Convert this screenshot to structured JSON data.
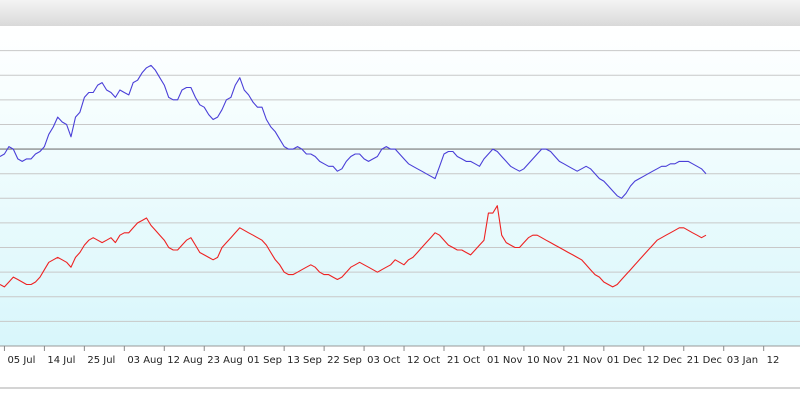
{
  "chart_data": {
    "type": "line",
    "title": "",
    "xlabel": "",
    "ylabel": "",
    "grid": true,
    "legend": "none",
    "x_tick_labels": [
      "05 Jul",
      "14 Jul",
      "25 Jul",
      "03 Aug",
      "12 Aug",
      "23 Aug",
      "01 Sep",
      "13 Sep",
      "22 Sep",
      "03 Oct",
      "12 Oct",
      "21 Oct",
      "01 Nov",
      "10 Nov",
      "21 Nov",
      "01 Dec",
      "12 Dec",
      "21 Dec",
      "03 Jan",
      "12"
    ],
    "x_tick_index": [
      1,
      10,
      19,
      28,
      37,
      46,
      55,
      64,
      73,
      82,
      91,
      100,
      109,
      118,
      127,
      136,
      145,
      154,
      163,
      172
    ],
    "y_range": [
      0,
      13
    ],
    "reference_line": 8,
    "series": [
      {
        "color": "#4a3fd8",
        "values": [
          7.7,
          7.8,
          8.1,
          8.0,
          7.6,
          7.5,
          7.6,
          7.6,
          7.8,
          7.9,
          8.1,
          8.6,
          8.9,
          9.3,
          9.1,
          9.0,
          8.5,
          9.3,
          9.5,
          10.1,
          10.3,
          10.3,
          10.6,
          10.7,
          10.4,
          10.3,
          10.1,
          10.4,
          10.3,
          10.2,
          10.7,
          10.8,
          11.1,
          11.3,
          11.4,
          11.2,
          10.9,
          10.6,
          10.1,
          10.0,
          10.0,
          10.4,
          10.5,
          10.5,
          10.1,
          9.8,
          9.7,
          9.4,
          9.2,
          9.3,
          9.6,
          10.0,
          10.1,
          10.6,
          10.9,
          10.4,
          10.2,
          9.9,
          9.7,
          9.7,
          9.2,
          8.9,
          8.7,
          8.4,
          8.1,
          8.0,
          8.0,
          8.1,
          8.0,
          7.8,
          7.8,
          7.7,
          7.5,
          7.4,
          7.3,
          7.3,
          7.1,
          7.2,
          7.5,
          7.7,
          7.8,
          7.8,
          7.6,
          7.5,
          7.6,
          7.7,
          8.0,
          8.1,
          8.0,
          8.0,
          7.8,
          7.6,
          7.4,
          7.3,
          7.2,
          7.1,
          7.0,
          6.9,
          6.8,
          7.3,
          7.8,
          7.9,
          7.9,
          7.7,
          7.6,
          7.5,
          7.5,
          7.4,
          7.3,
          7.6,
          7.8,
          8.0,
          7.9,
          7.7,
          7.5,
          7.3,
          7.2,
          7.1,
          7.2,
          7.4,
          7.6,
          7.8,
          8.0,
          8.0,
          7.9,
          7.7,
          7.5,
          7.4,
          7.3,
          7.2,
          7.1,
          7.2,
          7.3,
          7.2,
          7.0,
          6.8,
          6.7,
          6.5,
          6.3,
          6.1,
          6.0,
          6.2,
          6.5,
          6.7,
          6.8,
          6.9,
          7.0,
          7.1,
          7.2,
          7.3,
          7.3,
          7.4,
          7.4,
          7.5,
          7.5,
          7.5,
          7.4,
          7.3,
          7.2,
          7.0
        ]
      },
      {
        "color": "#ee2222",
        "values": [
          2.5,
          2.4,
          2.6,
          2.8,
          2.7,
          2.6,
          2.5,
          2.5,
          2.6,
          2.8,
          3.1,
          3.4,
          3.5,
          3.6,
          3.5,
          3.4,
          3.2,
          3.6,
          3.8,
          4.1,
          4.3,
          4.4,
          4.3,
          4.2,
          4.3,
          4.4,
          4.2,
          4.5,
          4.6,
          4.6,
          4.8,
          5.0,
          5.1,
          5.2,
          4.9,
          4.7,
          4.5,
          4.3,
          4.0,
          3.9,
          3.9,
          4.1,
          4.3,
          4.4,
          4.1,
          3.8,
          3.7,
          3.6,
          3.5,
          3.6,
          4.0,
          4.2,
          4.4,
          4.6,
          4.8,
          4.7,
          4.6,
          4.5,
          4.4,
          4.3,
          4.1,
          3.8,
          3.5,
          3.3,
          3.0,
          2.9,
          2.9,
          3.0,
          3.1,
          3.2,
          3.3,
          3.2,
          3.0,
          2.9,
          2.9,
          2.8,
          2.7,
          2.8,
          3.0,
          3.2,
          3.3,
          3.4,
          3.3,
          3.2,
          3.1,
          3.0,
          3.1,
          3.2,
          3.3,
          3.5,
          3.4,
          3.3,
          3.5,
          3.6,
          3.8,
          4.0,
          4.2,
          4.4,
          4.6,
          4.5,
          4.3,
          4.1,
          4.0,
          3.9,
          3.9,
          3.8,
          3.7,
          3.9,
          4.1,
          4.3,
          5.4,
          5.4,
          5.7,
          4.5,
          4.2,
          4.1,
          4.0,
          4.0,
          4.2,
          4.4,
          4.5,
          4.5,
          4.4,
          4.3,
          4.2,
          4.1,
          4.0,
          3.9,
          3.8,
          3.7,
          3.6,
          3.5,
          3.3,
          3.1,
          2.9,
          2.8,
          2.6,
          2.5,
          2.4,
          2.5,
          2.7,
          2.9,
          3.1,
          3.3,
          3.5,
          3.7,
          3.9,
          4.1,
          4.3,
          4.4,
          4.5,
          4.6,
          4.7,
          4.8,
          4.8,
          4.7,
          4.6,
          4.5,
          4.4,
          4.5
        ]
      }
    ]
  }
}
